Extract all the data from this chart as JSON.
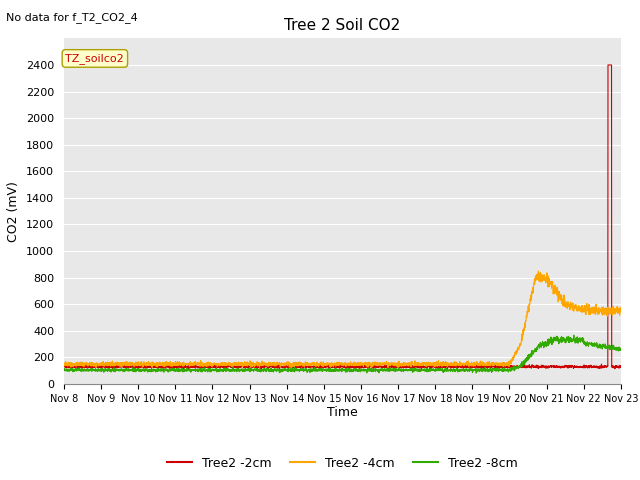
{
  "title": "Tree 2 Soil CO2",
  "top_left_text": "No data for f_T2_CO2_4",
  "ylabel": "CO2 (mV)",
  "xlabel": "Time",
  "ylim": [
    0,
    2600
  ],
  "yticks": [
    0,
    200,
    400,
    600,
    800,
    1000,
    1200,
    1400,
    1600,
    1800,
    2000,
    2200,
    2400
  ],
  "x_labels": [
    "Nov 8",
    "Nov 9",
    "Nov 10",
    "Nov 11",
    "Nov 12",
    "Nov 13",
    "Nov 14",
    "Nov 15",
    "Nov 16",
    "Nov 17",
    "Nov 18",
    "Nov 19",
    "Nov 20",
    "Nov 21",
    "Nov 22",
    "Nov 23"
  ],
  "annotation_label": "TZ_soilco2",
  "bg_color": "#e8e8e8",
  "grid_color": "#ffffff",
  "series": {
    "Tree2_2cm": {
      "color": "#cc0000",
      "label": "Tree2 -2cm"
    },
    "Tree2_4cm": {
      "color": "#ffa500",
      "label": "Tree2 -4cm"
    },
    "Tree2_8cm": {
      "color": "#33aa00",
      "label": "Tree2 -8cm"
    }
  }
}
